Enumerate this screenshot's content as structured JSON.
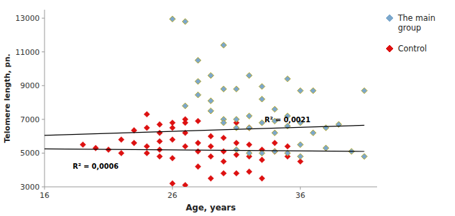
{
  "chart_data": {
    "type": "scatter",
    "xlabel": "Age, years",
    "ylabel": "Telomere length, pn.",
    "xlim": [
      16,
      42
    ],
    "ylim": [
      3000,
      13500
    ],
    "xticks": [
      16,
      26,
      36
    ],
    "yticks": [
      3000,
      5000,
      7000,
      9000,
      11000,
      13000
    ],
    "grid": false,
    "legend": "right",
    "series": [
      {
        "name": "The main\ngroup",
        "color": "#7BA7CC",
        "marker": "diamond",
        "x": [
          26,
          27,
          27,
          28,
          28,
          28,
          29,
          29,
          29,
          30,
          30,
          30,
          30,
          31,
          31,
          31,
          31,
          32,
          32,
          32,
          32,
          33,
          33,
          33,
          33,
          34,
          34,
          34,
          34,
          35,
          35,
          35,
          35,
          36,
          36,
          36,
          36,
          37,
          37,
          38,
          38,
          39,
          40,
          41,
          41
        ],
        "values": [
          12950,
          12800,
          7800,
          9250,
          10500,
          8450,
          7500,
          9600,
          8100,
          11400,
          8800,
          7000,
          6800,
          8800,
          7000,
          6500,
          5200,
          9600,
          7200,
          6500,
          5000,
          8950,
          8200,
          6800,
          5000,
          7600,
          6900,
          6200,
          5100,
          9400,
          7200,
          6600,
          5000,
          8700,
          6800,
          5500,
          4800,
          6200,
          8700,
          6500,
          5300,
          6700,
          5100,
          8700,
          4800
        ]
      },
      {
        "name": "Control",
        "color": "#DD1111",
        "marker": "diamond",
        "x": [
          19,
          20,
          21,
          22,
          22,
          23,
          23,
          24,
          24,
          24,
          24,
          25,
          25,
          25,
          25,
          25,
          26,
          26,
          26,
          26,
          26,
          27,
          27,
          27,
          27,
          27,
          28,
          28,
          28,
          28,
          29,
          29,
          29,
          29,
          30,
          30,
          30,
          30,
          31,
          31,
          31,
          31,
          32,
          32,
          32,
          32,
          33,
          33,
          33,
          34,
          34,
          35,
          35,
          36
        ],
        "values": [
          5500,
          5300,
          5200,
          5800,
          5000,
          6350,
          5600,
          7300,
          6500,
          5400,
          5000,
          6700,
          6200,
          5700,
          5200,
          4800,
          6800,
          6500,
          5800,
          4700,
          3200,
          7000,
          6800,
          6200,
          5400,
          3100,
          6900,
          5600,
          5100,
          4200,
          6000,
          5400,
          4800,
          3500,
          5900,
          5100,
          4500,
          3800,
          6800,
          5600,
          4900,
          3800,
          6500,
          5500,
          4800,
          3900,
          5200,
          4600,
          3500,
          5600,
          5100,
          5400,
          4800,
          4500
        ]
      },
      {
        "type": "line",
        "color": "#000000",
        "x": [
          16,
          41
        ],
        "values": [
          6050,
          6650
        ]
      },
      {
        "type": "line",
        "color": "#000000",
        "x": [
          16,
          41
        ],
        "values": [
          5250,
          5100
        ]
      }
    ],
    "annotations": [
      {
        "text": "R² = 0,0021",
        "x": 33.2,
        "y": 6750
      },
      {
        "text": "R² = 0,0006",
        "x": 18.2,
        "y": 4000
      }
    ]
  }
}
